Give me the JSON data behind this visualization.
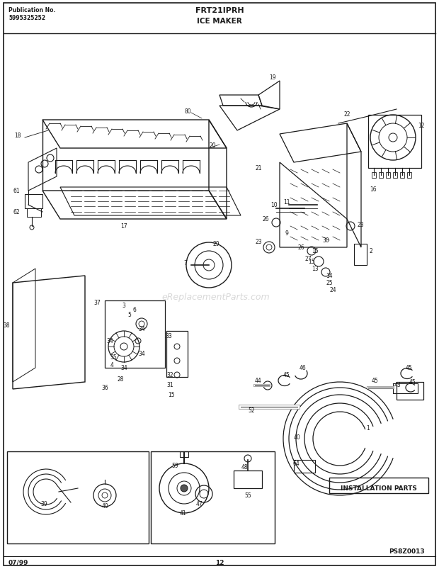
{
  "title_model": "FRT21IPRH",
  "title_section": "ICE MAKER",
  "pub_no_label": "Publication No.",
  "pub_no_value": "5995325252",
  "footer_left": "07/99",
  "footer_center": "12",
  "footer_right": "PS8Z0013",
  "install_parts_label": "INSTALLATION PARTS",
  "bg_color": "#ffffff",
  "border_color": "#000000",
  "diagram_color": "#1a1a1a",
  "fig_width": 6.2,
  "fig_height": 8.04,
  "dpi": 100
}
